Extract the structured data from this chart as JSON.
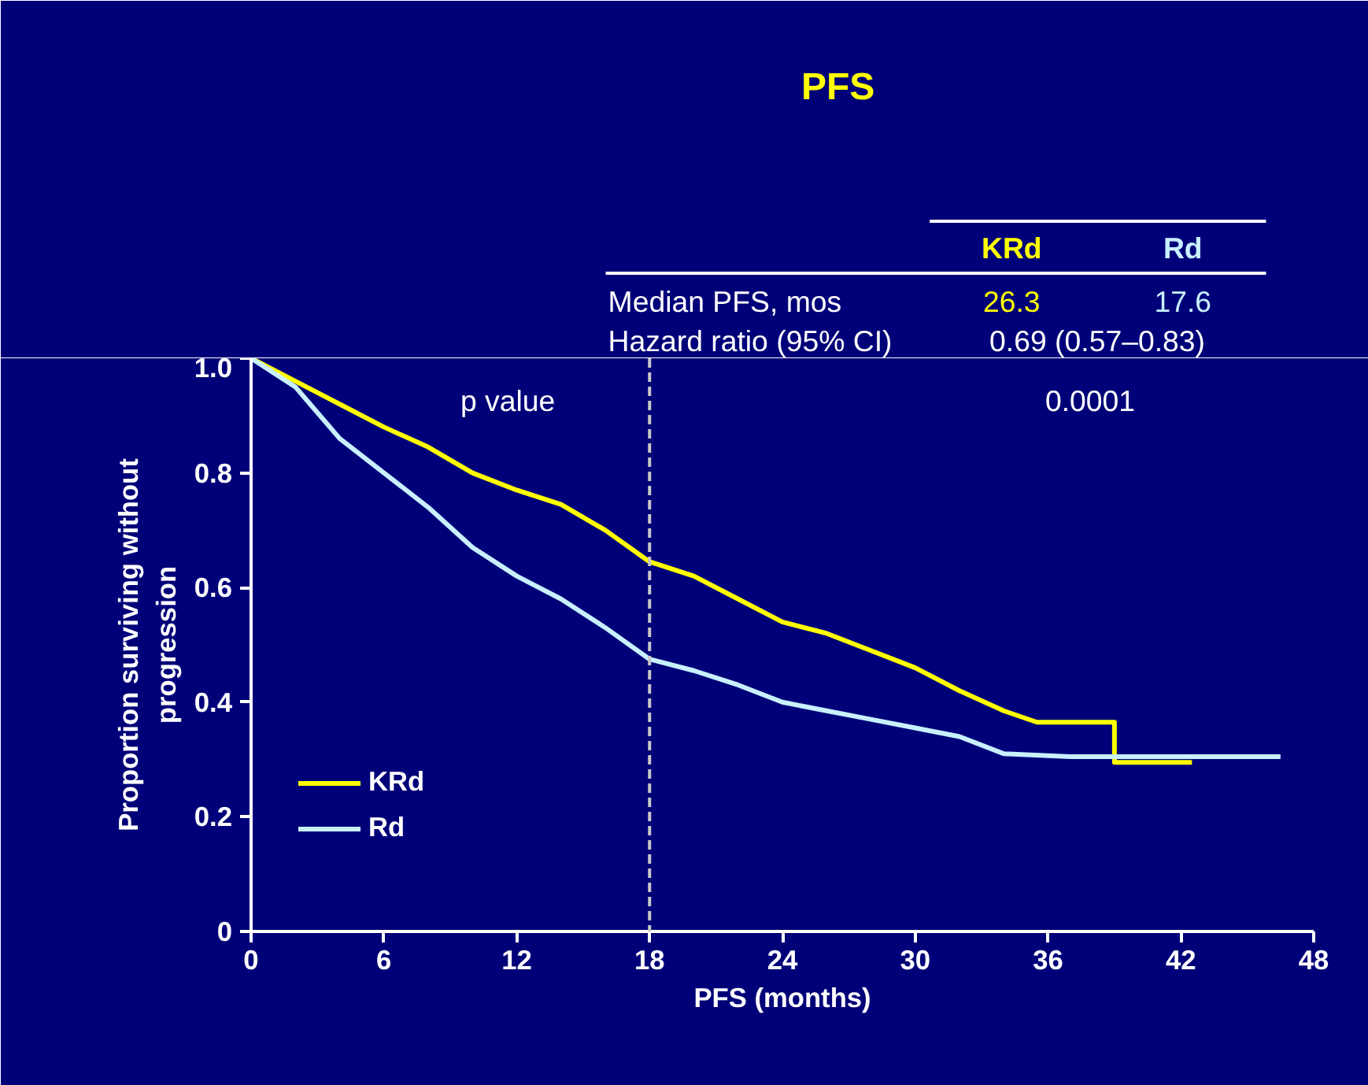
{
  "chart_data": {
    "type": "line",
    "title": "PFS",
    "xlabel": "PFS (months)",
    "ylabel": "Proportion surviving without\nprogression",
    "xlim": [
      0,
      48
    ],
    "ylim": [
      0,
      1.0
    ],
    "xticks": [
      0,
      6,
      12,
      18,
      24,
      30,
      36,
      42,
      48
    ],
    "yticks": [
      0,
      0.2,
      0.4,
      0.6,
      0.8,
      {
        "value": 1,
        "label": "1.0"
      }
    ],
    "grid": false,
    "legend": "bottom left",
    "marker": "none",
    "line_style": "solid",
    "ref_lines": [
      {
        "axis": "x",
        "value": 18,
        "color": "#c8c8c8",
        "line_style": "dashed"
      }
    ],
    "annotations": [
      "KRd",
      "Rd",
      "Median PFS, mos",
      "26.3",
      "17.6",
      "Hazard ratio (95% CI)",
      "0.69 (0.57–0.83)",
      "p value",
      "0.0001"
    ],
    "series": [
      {
        "name": "KRd",
        "color": "#ffff00",
        "x": [
          0,
          2,
          4,
          6,
          8,
          10,
          12,
          14,
          16,
          18,
          20,
          22,
          24,
          26,
          28,
          30,
          32,
          34,
          35.5,
          39,
          39,
          42.5
        ],
        "values": [
          1.0,
          0.96,
          0.92,
          0.88,
          0.845,
          0.8,
          0.77,
          0.745,
          0.7,
          0.645,
          0.62,
          0.58,
          0.54,
          0.52,
          0.49,
          0.46,
          0.42,
          0.385,
          0.365,
          0.365,
          0.295,
          0.295
        ]
      },
      {
        "name": "Rd",
        "color": "#c8f0ff",
        "x": [
          0,
          2,
          4,
          6,
          8,
          10,
          12,
          14,
          16,
          18,
          20,
          22,
          24,
          26,
          28,
          30,
          32,
          34,
          37,
          46.5
        ],
        "values": [
          1.0,
          0.95,
          0.86,
          0.8,
          0.74,
          0.67,
          0.62,
          0.58,
          0.53,
          0.475,
          0.455,
          0.43,
          0.4,
          0.385,
          0.37,
          0.355,
          0.34,
          0.31,
          0.305,
          0.305
        ]
      }
    ]
  }
}
